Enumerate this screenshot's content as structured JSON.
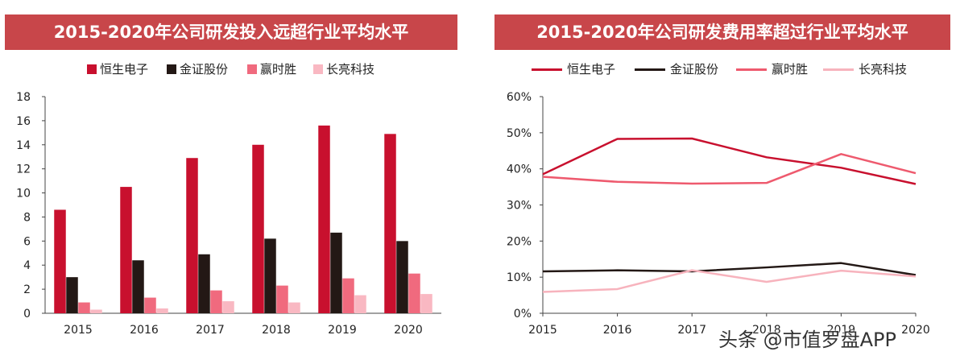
{
  "chart_data": [
    {
      "type": "bar",
      "title": "2015-2020年公司研发投入远超行业平均水平",
      "categories": [
        "2015",
        "2016",
        "2017",
        "2018",
        "2019",
        "2020"
      ],
      "series": [
        {
          "name": "恒生电子",
          "color": "#c8102e",
          "values": [
            8.6,
            10.5,
            12.9,
            14.0,
            15.6,
            14.9
          ]
        },
        {
          "name": "金证股份",
          "color": "#231815",
          "values": [
            3.0,
            4.4,
            4.9,
            6.2,
            6.7,
            6.0
          ]
        },
        {
          "name": "赢时胜",
          "color": "#f06a7e",
          "values": [
            0.9,
            1.3,
            1.9,
            2.3,
            2.9,
            3.3
          ]
        },
        {
          "name": "长亮科技",
          "color": "#f9b8c2",
          "values": [
            0.3,
            0.4,
            1.0,
            0.9,
            1.5,
            1.6
          ]
        }
      ],
      "ylim": [
        0,
        18
      ],
      "yticks": [
        "0",
        "2",
        "4",
        "6",
        "8",
        "10",
        "12",
        "14",
        "16",
        "18"
      ],
      "xlabel": "",
      "ylabel": ""
    },
    {
      "type": "line",
      "title": "2015-2020年公司研发费用率超过行业平均水平",
      "x": [
        "2015",
        "2016",
        "2017",
        "2018",
        "2019",
        "2020"
      ],
      "series": [
        {
          "name": "恒生电子",
          "color": "#c8102e",
          "values": [
            38.5,
            48.3,
            48.4,
            43.2,
            40.3,
            35.8
          ]
        },
        {
          "name": "金证股份",
          "color": "#231815",
          "values": [
            11.6,
            11.9,
            11.6,
            12.7,
            13.9,
            10.6
          ]
        },
        {
          "name": "赢时胜",
          "color": "#ee5a6e",
          "values": [
            37.8,
            36.4,
            35.9,
            36.1,
            44.1,
            38.8
          ]
        },
        {
          "name": "长亮科技",
          "color": "#f7b3bd",
          "values": [
            5.9,
            6.7,
            11.9,
            8.7,
            11.8,
            10.2
          ]
        }
      ],
      "ylim": [
        0,
        60
      ],
      "yticks": [
        "0%",
        "10%",
        "20%",
        "30%",
        "40%",
        "50%",
        "60%"
      ],
      "xlabel": "",
      "ylabel": ""
    }
  ],
  "watermark": "头条 @市值罗盘APP"
}
